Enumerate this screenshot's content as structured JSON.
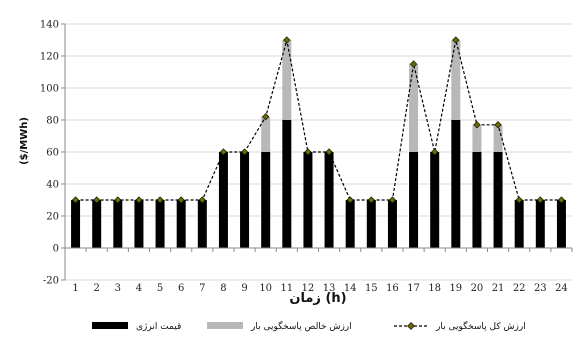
{
  "chart_data": {
    "type": "bar",
    "stacked": true,
    "title": "",
    "xlabel": "زمان (h)",
    "ylabel": "($/MWh)",
    "ylim": [
      -20,
      140
    ],
    "yticks": [
      -20,
      0,
      20,
      40,
      60,
      80,
      100,
      120,
      140
    ],
    "grid": "horizontal",
    "legend_position": "bottom",
    "categories": [
      "1",
      "2",
      "3",
      "4",
      "5",
      "6",
      "7",
      "8",
      "9",
      "10",
      "11",
      "12",
      "13",
      "14",
      "15",
      "16",
      "17",
      "18",
      "19",
      "20",
      "21",
      "22",
      "23",
      "24"
    ],
    "series": [
      {
        "name": "قیمت انرژی",
        "kind": "bar",
        "color": "#000000",
        "values": [
          30,
          30,
          30,
          30,
          30,
          30,
          30,
          60,
          60,
          60,
          80,
          60,
          60,
          30,
          30,
          30,
          60,
          60,
          80,
          60,
          60,
          30,
          30,
          30
        ]
      },
      {
        "name": "ارزش خالص پاسخگویی بار",
        "kind": "bar",
        "color": "#b8b8b8",
        "values": [
          0,
          0,
          0,
          0,
          0,
          0,
          0,
          0,
          0,
          22,
          50,
          0,
          0,
          0,
          0,
          0,
          55,
          0,
          50,
          17,
          17,
          0,
          0,
          0
        ]
      },
      {
        "name": "ارزش کل پاسخگویی بار",
        "kind": "line",
        "color": "#000000",
        "marker_color": "#6b6b00",
        "values": [
          30,
          30,
          30,
          30,
          30,
          30,
          30,
          60,
          60,
          82,
          130,
          60,
          60,
          30,
          30,
          30,
          115,
          60,
          130,
          77,
          77,
          30,
          30,
          30
        ]
      }
    ]
  }
}
